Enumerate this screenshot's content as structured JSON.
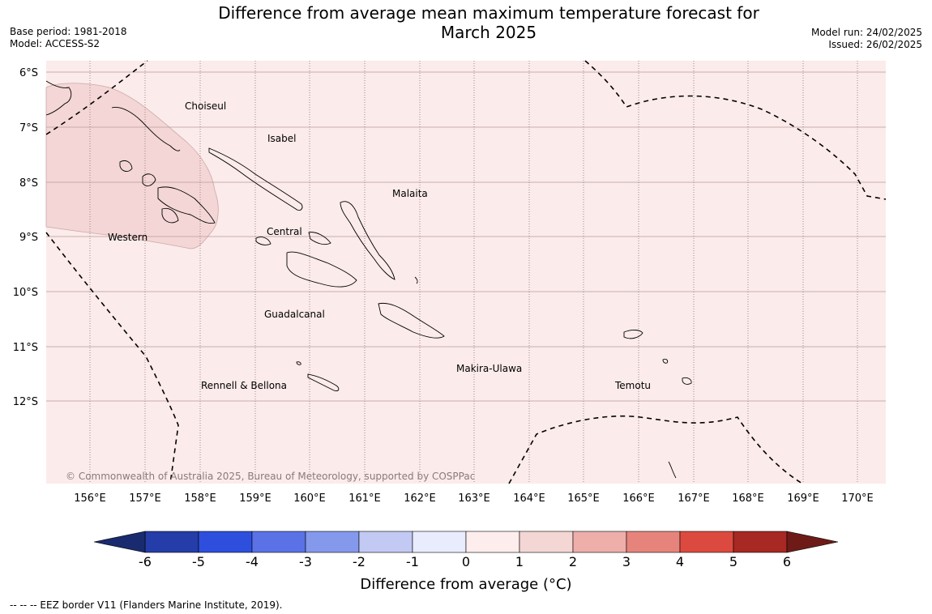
{
  "title_line1": "Difference from average mean maximum temperature forecast for",
  "title_line2": "March 2025",
  "meta_left": {
    "base_period": "Base period: 1981-2018",
    "model": "Model: ACCESS-S2"
  },
  "meta_right": {
    "model_run": "Model run: 24/02/2025",
    "issued": "Issued: 26/02/2025"
  },
  "copyright": "© Commonwealth of Australia 2025, Bureau of Meteorology, supported by COSPPac",
  "lon_labels": [
    "156°E",
    "157°E",
    "158°E",
    "159°E",
    "160°E",
    "161°E",
    "162°E",
    "163°E",
    "164°E",
    "165°E",
    "166°E",
    "167°E",
    "168°E",
    "169°E",
    "170°E"
  ],
  "lat_labels": [
    "6°S",
    "7°S",
    "8°S",
    "9°S",
    "10°S",
    "11°S",
    "12°S"
  ],
  "regions": {
    "choiseul": "Choiseul",
    "isabel": "Isabel",
    "malaita": "Malaita",
    "western": "Western",
    "central": "Central",
    "guadalcanal": "Guadalcanal",
    "makira": "Makira-Ulawa",
    "rennell": "Rennell & Bellona",
    "temotu": "Temotu"
  },
  "colorbar": {
    "ticks": [
      "-6",
      "-5",
      "-4",
      "-3",
      "-2",
      "-1",
      "0",
      "1",
      "2",
      "3",
      "4",
      "5",
      "6"
    ],
    "colors": [
      "#253da8",
      "#2e4fdd",
      "#5a72e6",
      "#8498ec",
      "#c2c9f3",
      "#e9ecfc",
      "#fdeded",
      "#f4d6d4",
      "#eeaeaa",
      "#e6847c",
      "#dc4a3f",
      "#a82823"
    ],
    "min_extend_color": "#1a2a6e",
    "max_extend_color": "#6e1b18",
    "title": "Difference from average (°C)"
  },
  "map_colors": {
    "background": "#fbebea",
    "anomaly_patch": "#f3d6d5"
  },
  "footnote": "--  --  -- EEZ border V11 (Flanders Marine Institute, 2019)."
}
